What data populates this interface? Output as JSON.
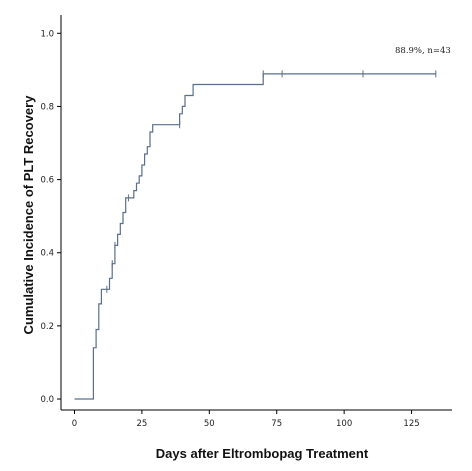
{
  "chart_data": {
    "type": "line",
    "xlabel": "Days after Eltrombopag Treatment",
    "ylabel": "Cumulative Incidence of PLT Recovery",
    "xlim": [
      -5,
      140
    ],
    "ylim": [
      -0.03,
      1.05
    ],
    "x_ticks": [
      0,
      25,
      50,
      75,
      100,
      125
    ],
    "x_tick_labels": [
      "0",
      "25",
      "50",
      "75",
      "100",
      "125"
    ],
    "y_ticks": [
      0.0,
      0.2,
      0.4,
      0.6,
      0.8,
      1.0
    ],
    "y_tick_labels": [
      "0.0",
      "0.2",
      "0.4",
      "0.6",
      "0.8",
      "1.0"
    ],
    "annotation": "88.9%, n=43",
    "line_color": "#5a6f8a",
    "censor_color": "#5a6f8a",
    "series": [
      {
        "step_points": [
          [
            0,
            0.0
          ],
          [
            7,
            0.0
          ],
          [
            7,
            0.14
          ],
          [
            8,
            0.14
          ],
          [
            8,
            0.19
          ],
          [
            9,
            0.19
          ],
          [
            9,
            0.26
          ],
          [
            10,
            0.26
          ],
          [
            10,
            0.3
          ],
          [
            13,
            0.3
          ],
          [
            13,
            0.33
          ],
          [
            14,
            0.33
          ],
          [
            14,
            0.37
          ],
          [
            15,
            0.37
          ],
          [
            15,
            0.42
          ],
          [
            16,
            0.42
          ],
          [
            16,
            0.45
          ],
          [
            17,
            0.45
          ],
          [
            17,
            0.48
          ],
          [
            18,
            0.48
          ],
          [
            18,
            0.51
          ],
          [
            19,
            0.51
          ],
          [
            19,
            0.55
          ],
          [
            22,
            0.55
          ],
          [
            22,
            0.57
          ],
          [
            23,
            0.57
          ],
          [
            23,
            0.59
          ],
          [
            24,
            0.59
          ],
          [
            24,
            0.61
          ],
          [
            25,
            0.61
          ],
          [
            25,
            0.64
          ],
          [
            26,
            0.64
          ],
          [
            26,
            0.67
          ],
          [
            27,
            0.67
          ],
          [
            27,
            0.69
          ],
          [
            28,
            0.69
          ],
          [
            28,
            0.73
          ],
          [
            29,
            0.73
          ],
          [
            29,
            0.75
          ],
          [
            39,
            0.75
          ],
          [
            39,
            0.78
          ],
          [
            40,
            0.78
          ],
          [
            40,
            0.8
          ],
          [
            41,
            0.8
          ],
          [
            41,
            0.83
          ],
          [
            44,
            0.83
          ],
          [
            44,
            0.86
          ],
          [
            70,
            0.86
          ],
          [
            70,
            0.889
          ],
          [
            134,
            0.889
          ]
        ],
        "censored": [
          [
            12,
            0.3
          ],
          [
            14,
            0.37
          ],
          [
            15,
            0.42
          ],
          [
            20,
            0.55
          ],
          [
            39,
            0.75
          ],
          [
            70,
            0.889
          ],
          [
            77,
            0.889
          ],
          [
            107,
            0.889
          ],
          [
            134,
            0.889
          ]
        ]
      }
    ]
  }
}
